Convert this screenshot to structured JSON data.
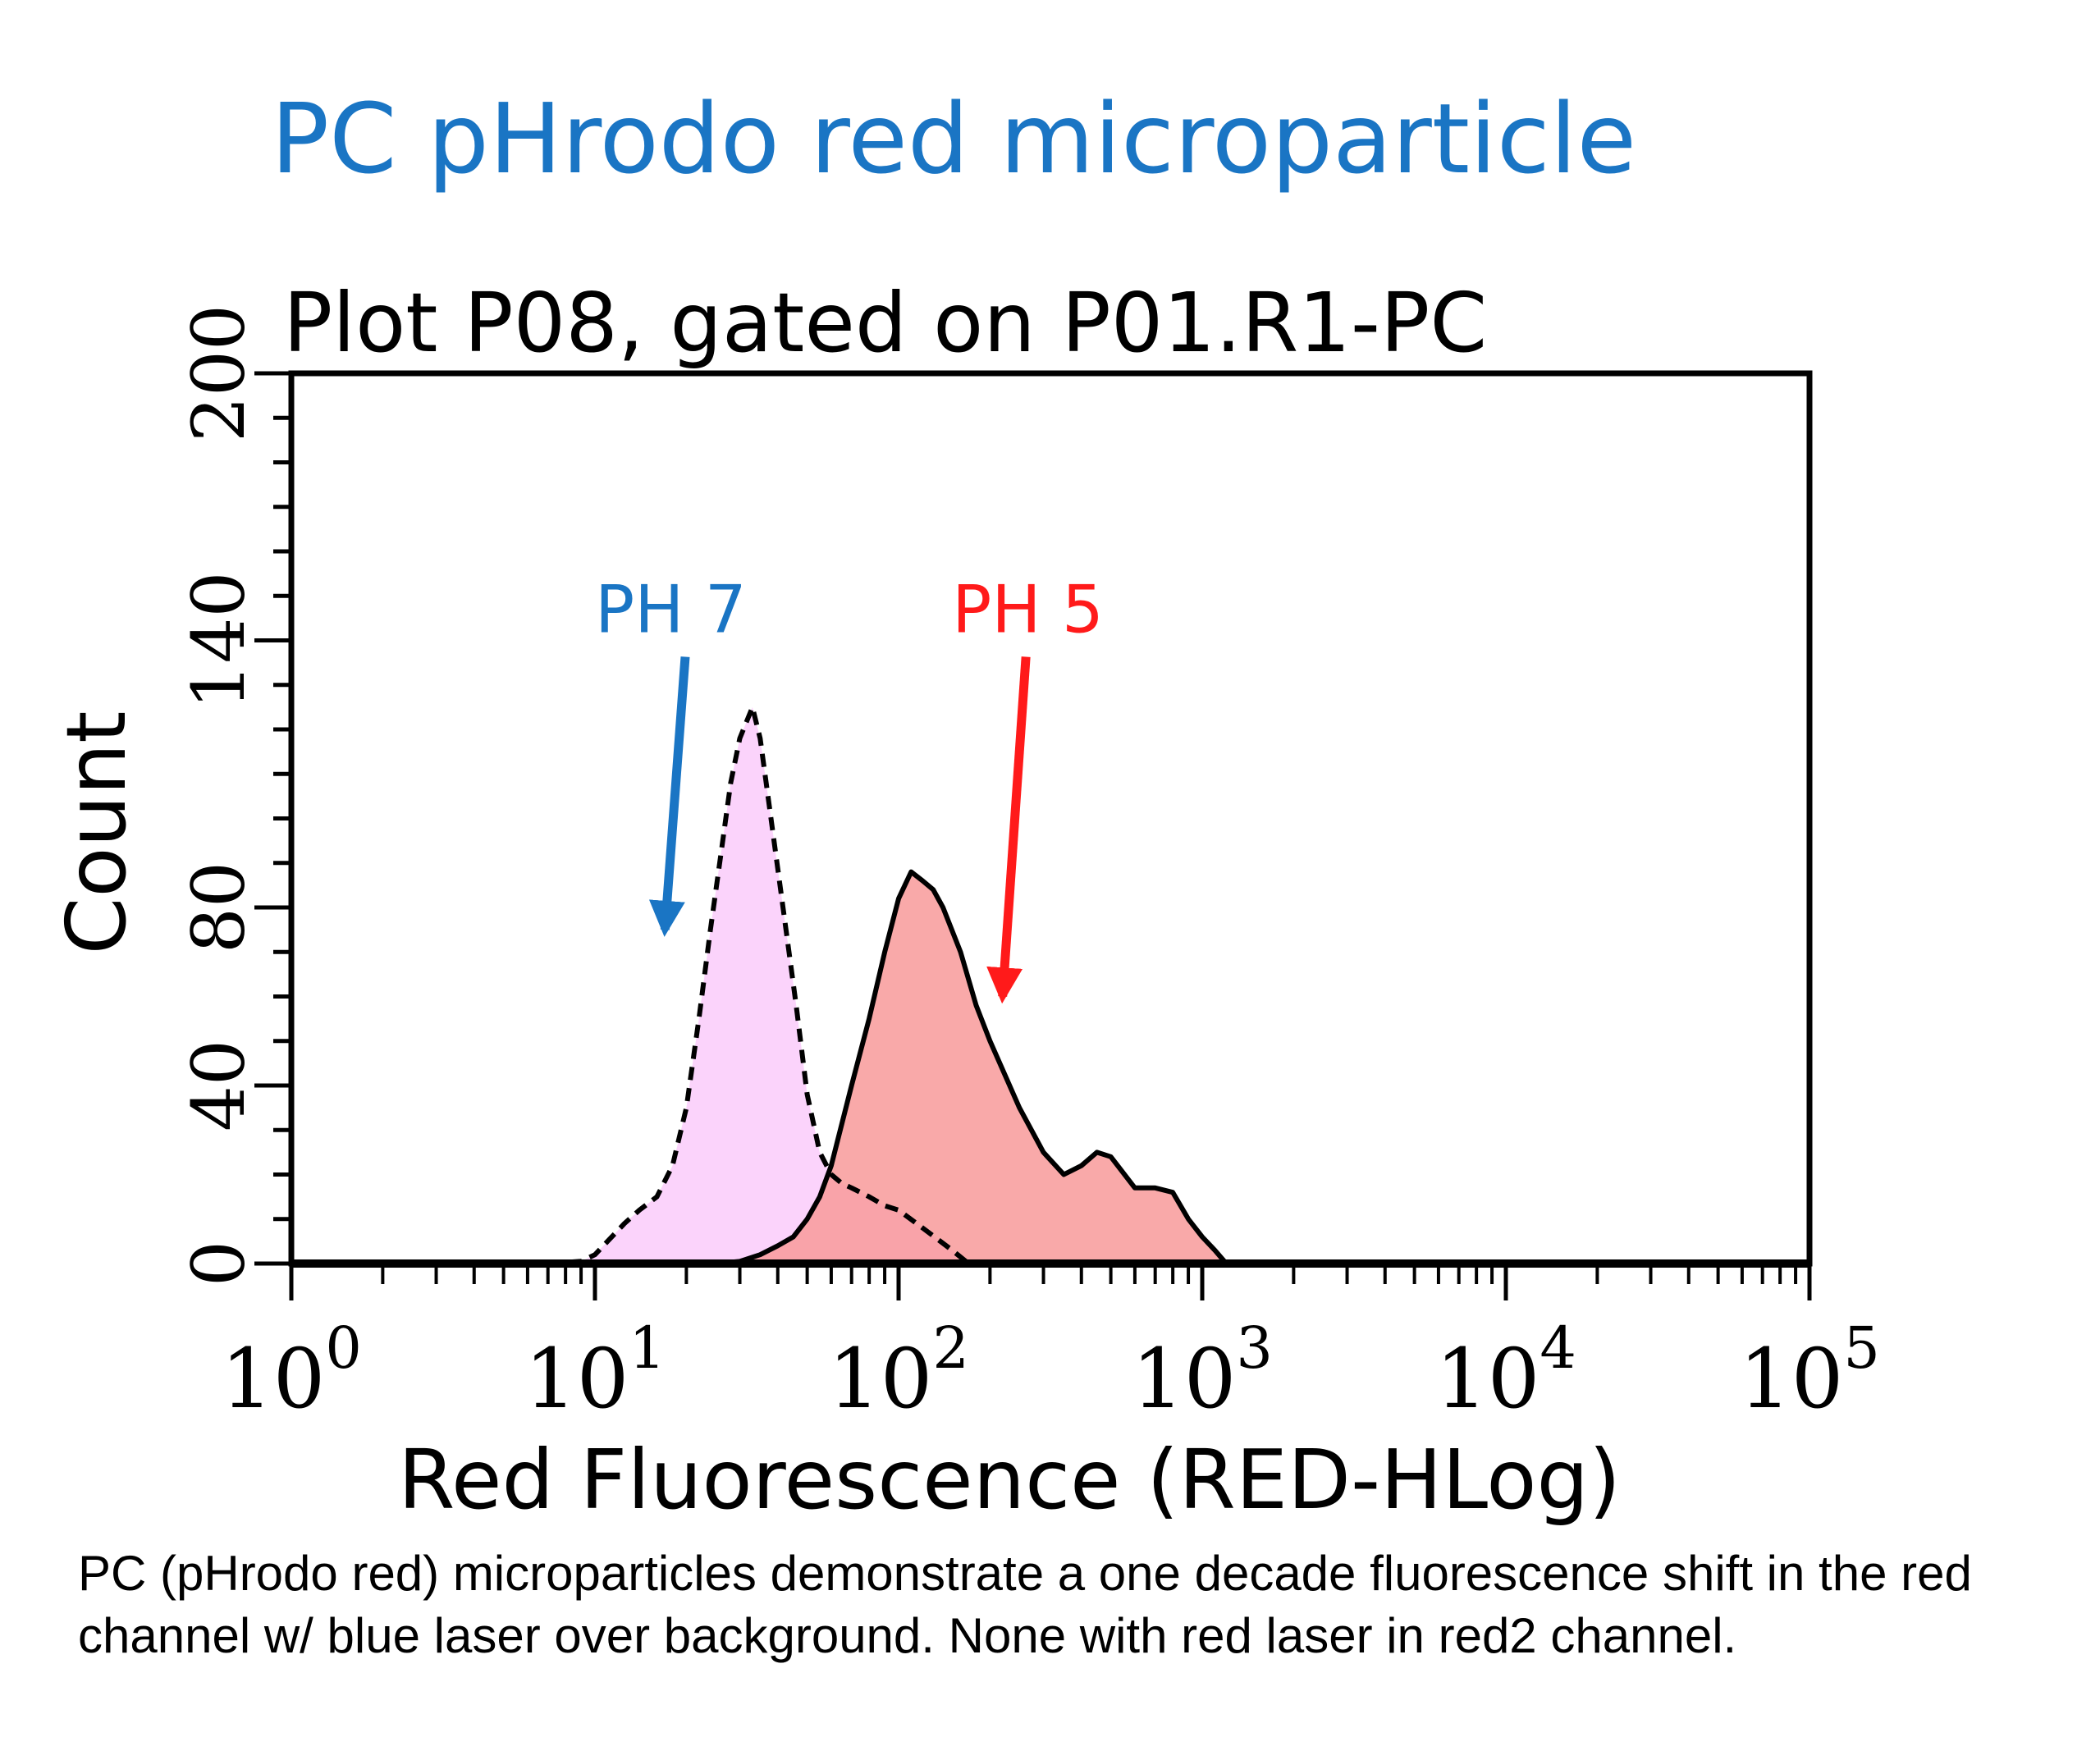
{
  "page_title": "PC pHrodo red microparticle",
  "caption": "PC (pHrodo red) microparticles demonstrate a one decade fluorescence shift in the red channel w/ blue laser over background. None with red laser in red2 channel.",
  "chart_data": {
    "type": "area",
    "title": "Plot P08, gated on P01.R1-PC",
    "xlabel": "Red Fluorescence (RED-HLog)",
    "ylabel": "Count",
    "x_scale": "log",
    "xlim": [
      1,
      100000
    ],
    "ylim": [
      0,
      200
    ],
    "x_ticks": [
      {
        "base": "10",
        "exp": "0",
        "value": 1
      },
      {
        "base": "10",
        "exp": "1",
        "value": 10
      },
      {
        "base": "10",
        "exp": "2",
        "value": 100
      },
      {
        "base": "10",
        "exp": "3",
        "value": 1000
      },
      {
        "base": "10",
        "exp": "4",
        "value": 10000
      },
      {
        "base": "10",
        "exp": "5",
        "value": 100000
      }
    ],
    "y_ticks": [
      "0",
      "40",
      "80",
      "140",
      "200"
    ],
    "y_tick_values": [
      0,
      40,
      80,
      140,
      200
    ],
    "series": [
      {
        "name": "PH 7",
        "line_style": "dashed",
        "fill": "#fbd3fb",
        "label_color": "#1a75c4",
        "x": [
          7,
          9,
          10,
          11,
          12.5,
          14,
          16,
          18,
          20,
          22,
          24,
          26,
          28,
          30,
          33,
          35,
          38,
          42,
          46,
          50,
          55,
          60,
          65,
          70,
          80,
          90,
          100,
          120,
          150,
          170
        ],
        "y": [
          0,
          0.5,
          2,
          5,
          9,
          12,
          15,
          22,
          35,
          55,
          75,
          92,
          108,
          118,
          125,
          118,
          100,
          78,
          58,
          38,
          25,
          20,
          18,
          17,
          15,
          13,
          12,
          8,
          3,
          0
        ]
      },
      {
        "name": "PH 5",
        "line_style": "solid",
        "fill": "#f89a9a",
        "label_color": "#ff1a1a",
        "x": [
          25,
          30,
          35,
          40,
          45,
          50,
          55,
          60,
          70,
          80,
          90,
          100,
          110,
          120,
          130,
          140,
          160,
          180,
          200,
          250,
          300,
          350,
          400,
          450,
          500,
          600,
          700,
          800,
          900,
          1000,
          1100,
          1200
        ],
        "y": [
          0,
          0.5,
          2,
          4,
          6,
          10,
          15,
          22,
          40,
          55,
          70,
          82,
          88,
          86,
          84,
          80,
          70,
          58,
          50,
          35,
          25,
          20,
          22,
          25,
          24,
          17,
          17,
          16,
          10,
          6,
          3,
          0
        ]
      }
    ],
    "annotations": [
      {
        "text": "PH 7",
        "series": "PH 7",
        "x": 10,
        "y": 140,
        "arrow_to_x": 17,
        "arrow_to_y": 75
      },
      {
        "text": "PH 5",
        "series": "PH 5",
        "x": 150,
        "y": 140,
        "arrow_to_x": 220,
        "arrow_to_y": 60
      }
    ]
  }
}
